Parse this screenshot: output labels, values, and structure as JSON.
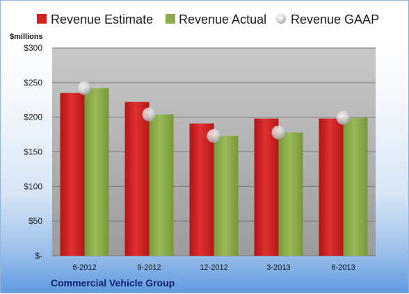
{
  "chart_data": {
    "type": "bar",
    "title": "",
    "company": "Commercial Vehicle Group",
    "unit_label": "$millions",
    "categories": [
      "6-2012",
      "9-2012",
      "12-2012",
      "3-2013",
      "6-2013"
    ],
    "series": [
      {
        "name": "Revenue Estimate",
        "kind": "bar",
        "color": "#d42020",
        "values": [
          235,
          222,
          191,
          198,
          198
        ]
      },
      {
        "name": "Revenue Actual",
        "kind": "bar",
        "color": "#8aab4a",
        "values": [
          242,
          204,
          173,
          178,
          199
        ]
      },
      {
        "name": "Revenue GAAP",
        "kind": "marker",
        "color": "#c8ccd4",
        "values": [
          242,
          204,
          173,
          178,
          199
        ]
      }
    ],
    "ylim": [
      0,
      300
    ],
    "yticks": [
      0,
      50,
      100,
      150,
      200,
      250,
      300
    ],
    "ytick_labels": [
      "$-",
      "$50",
      "$100",
      "$150",
      "$200",
      "$250",
      "$300"
    ],
    "grid": true,
    "legend_position": "top"
  }
}
